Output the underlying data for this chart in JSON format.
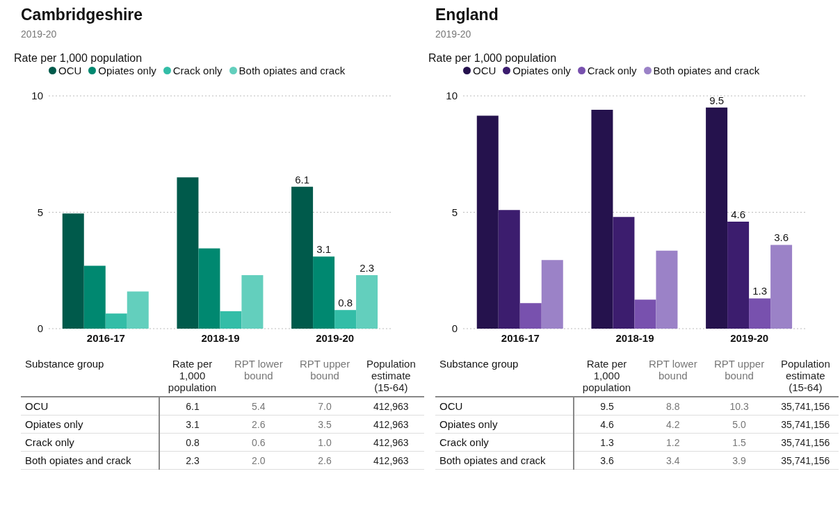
{
  "chart_data": [
    {
      "type": "bar",
      "title": "Cambridgeshire",
      "subtitle": "2019-20",
      "ylabel": "Rate per 1,000 population",
      "categories": [
        "2016-17",
        "2018-19",
        "2019-20"
      ],
      "series": [
        {
          "name": "OCU",
          "color": "#005a4b",
          "values": [
            4.95,
            6.5,
            6.1
          ],
          "value_labels": [
            null,
            null,
            "6.1"
          ]
        },
        {
          "name": "Opiates only",
          "color": "#008870",
          "values": [
            2.7,
            3.45,
            3.1
          ],
          "value_labels": [
            null,
            null,
            "3.1"
          ]
        },
        {
          "name": "Crack only",
          "color": "#33bda7",
          "values": [
            0.65,
            0.75,
            0.8
          ],
          "value_labels": [
            null,
            null,
            "0.8"
          ]
        },
        {
          "name": "Both opiates and crack",
          "color": "#63cfbd",
          "values": [
            1.6,
            2.3,
            2.3
          ],
          "value_labels": [
            null,
            null,
            "2.3"
          ]
        }
      ],
      "ylim": [
        0,
        10
      ],
      "yticks": [
        0,
        5,
        10
      ],
      "grid": "y",
      "legend": "top left"
    },
    {
      "type": "bar",
      "title": "England",
      "subtitle": "2019-20",
      "ylabel": "Rate per 1,000 population",
      "categories": [
        "2016-17",
        "2018-19",
        "2019-20"
      ],
      "series": [
        {
          "name": "OCU",
          "color": "#25124d",
          "values": [
            9.15,
            9.4,
            9.5
          ],
          "value_labels": [
            null,
            null,
            "9.5"
          ]
        },
        {
          "name": "Opiates only",
          "color": "#3c1d6e",
          "values": [
            5.1,
            4.8,
            4.6
          ],
          "value_labels": [
            null,
            null,
            "4.6"
          ]
        },
        {
          "name": "Crack only",
          "color": "#7851ae",
          "values": [
            1.1,
            1.25,
            1.3
          ],
          "value_labels": [
            null,
            null,
            "1.3"
          ]
        },
        {
          "name": "Both opiates and crack",
          "color": "#9b82c7",
          "values": [
            2.95,
            3.35,
            3.6
          ],
          "value_labels": [
            null,
            null,
            "3.6"
          ]
        }
      ],
      "ylim": [
        0,
        10
      ],
      "yticks": [
        0,
        5,
        10
      ],
      "grid": "y",
      "legend": "top left"
    },
    {
      "type": "other",
      "xlabel": "Substance group",
      "categories": [
        "OCU",
        "Opiates only",
        "Crack only",
        "Both opiates and crack"
      ],
      "series": [
        {
          "name": "Rate per 1,000 population",
          "color": "#222222",
          "values": [
            6.1,
            3.1,
            0.8,
            2.3
          ],
          "value_labels": [
            "6.1",
            "3.1",
            "0.8",
            "2.3"
          ]
        },
        {
          "name": "RPT lower bound",
          "color": "#777777",
          "values": [
            5.4,
            2.6,
            0.6,
            2.0
          ],
          "value_labels": [
            "5.4",
            "2.6",
            "0.6",
            "2.0"
          ]
        },
        {
          "name": "RPT upper bound",
          "color": "#777777",
          "values": [
            7.0,
            3.5,
            1.0,
            2.6
          ],
          "value_labels": [
            "7.0",
            "3.5",
            "1.0",
            "2.6"
          ]
        },
        {
          "name": "Population estimate (15-64)",
          "color": "#222222",
          "values": [
            412963,
            412963,
            412963,
            412963
          ],
          "value_labels": [
            "412,963",
            "412,963",
            "412,963",
            "412,963"
          ]
        }
      ]
    },
    {
      "type": "other",
      "xlabel": "Substance group",
      "categories": [
        "OCU",
        "Opiates only",
        "Crack only",
        "Both opiates and crack"
      ],
      "series": [
        {
          "name": "Rate per 1,000 population",
          "color": "#222222",
          "values": [
            9.5,
            4.6,
            1.3,
            3.6
          ],
          "value_labels": [
            "9.5",
            "4.6",
            "1.3",
            "3.6"
          ]
        },
        {
          "name": "RPT lower bound",
          "color": "#777777",
          "values": [
            8.8,
            4.2,
            1.2,
            3.4
          ],
          "value_labels": [
            "8.8",
            "4.2",
            "1.2",
            "3.4"
          ]
        },
        {
          "name": "RPT upper bound",
          "color": "#777777",
          "values": [
            10.3,
            5.0,
            1.5,
            3.9
          ],
          "value_labels": [
            "10.3",
            "5.0",
            "1.5",
            "3.9"
          ]
        },
        {
          "name": "Population estimate (15-64)",
          "color": "#222222",
          "values": [
            35741156,
            35741156,
            35741156,
            35741156
          ],
          "value_labels": [
            "35,741,156",
            "35,741,156",
            "35,741,156",
            "35,741,156"
          ]
        }
      ]
    }
  ]
}
